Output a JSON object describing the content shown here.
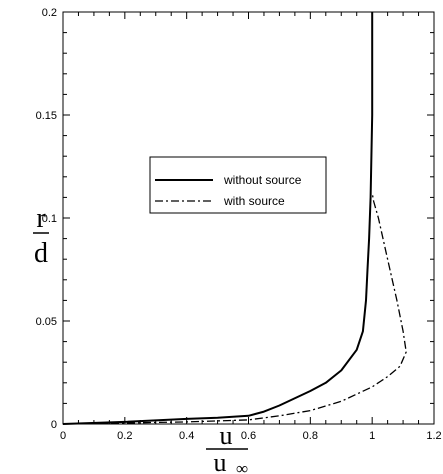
{
  "chart_data": {
    "type": "line",
    "title": "",
    "xlabel": {
      "numerator": "u",
      "denominator": "u",
      "subscript": "∞"
    },
    "ylabel": {
      "numerator": "r",
      "denominator": "d"
    },
    "xlim": [
      0,
      1.2
    ],
    "ylim": [
      0,
      0.2
    ],
    "x_ticks": [
      "0",
      "0.2",
      "0.4",
      "0.6",
      "0.8",
      "1",
      "1.2"
    ],
    "y_ticks": [
      "0",
      "0.05",
      "0.1",
      "0.15",
      "0.2"
    ],
    "grid": false,
    "legend_position": "center",
    "series": [
      {
        "name": "without source",
        "style": "solid",
        "color": "#000000",
        "points": [
          [
            0,
            0
          ],
          [
            0.2,
            0.001
          ],
          [
            0.4,
            0.0025
          ],
          [
            0.5,
            0.003
          ],
          [
            0.6,
            0.004
          ],
          [
            0.65,
            0.006
          ],
          [
            0.7,
            0.009
          ],
          [
            0.8,
            0.016
          ],
          [
            0.85,
            0.02
          ],
          [
            0.9,
            0.026
          ],
          [
            0.95,
            0.036
          ],
          [
            0.97,
            0.045
          ],
          [
            0.98,
            0.06
          ],
          [
            0.985,
            0.075
          ],
          [
            0.99,
            0.09
          ],
          [
            0.995,
            0.11
          ],
          [
            1.0,
            0.15
          ],
          [
            1.0,
            0.2
          ]
        ]
      },
      {
        "name": "with source",
        "style": "dashdot",
        "color": "#000000",
        "points": [
          [
            0,
            0
          ],
          [
            0.2,
            0.0005
          ],
          [
            0.4,
            0.001
          ],
          [
            0.6,
            0.002
          ],
          [
            0.7,
            0.004
          ],
          [
            0.8,
            0.0065
          ],
          [
            0.9,
            0.011
          ],
          [
            1.0,
            0.018
          ],
          [
            1.05,
            0.023
          ],
          [
            1.09,
            0.028
          ],
          [
            1.11,
            0.035
          ],
          [
            1.1,
            0.045
          ],
          [
            1.08,
            0.06
          ],
          [
            1.05,
            0.08
          ],
          [
            1.02,
            0.1
          ],
          [
            1.005,
            0.108
          ],
          [
            1.0,
            0.112
          ]
        ]
      }
    ]
  }
}
